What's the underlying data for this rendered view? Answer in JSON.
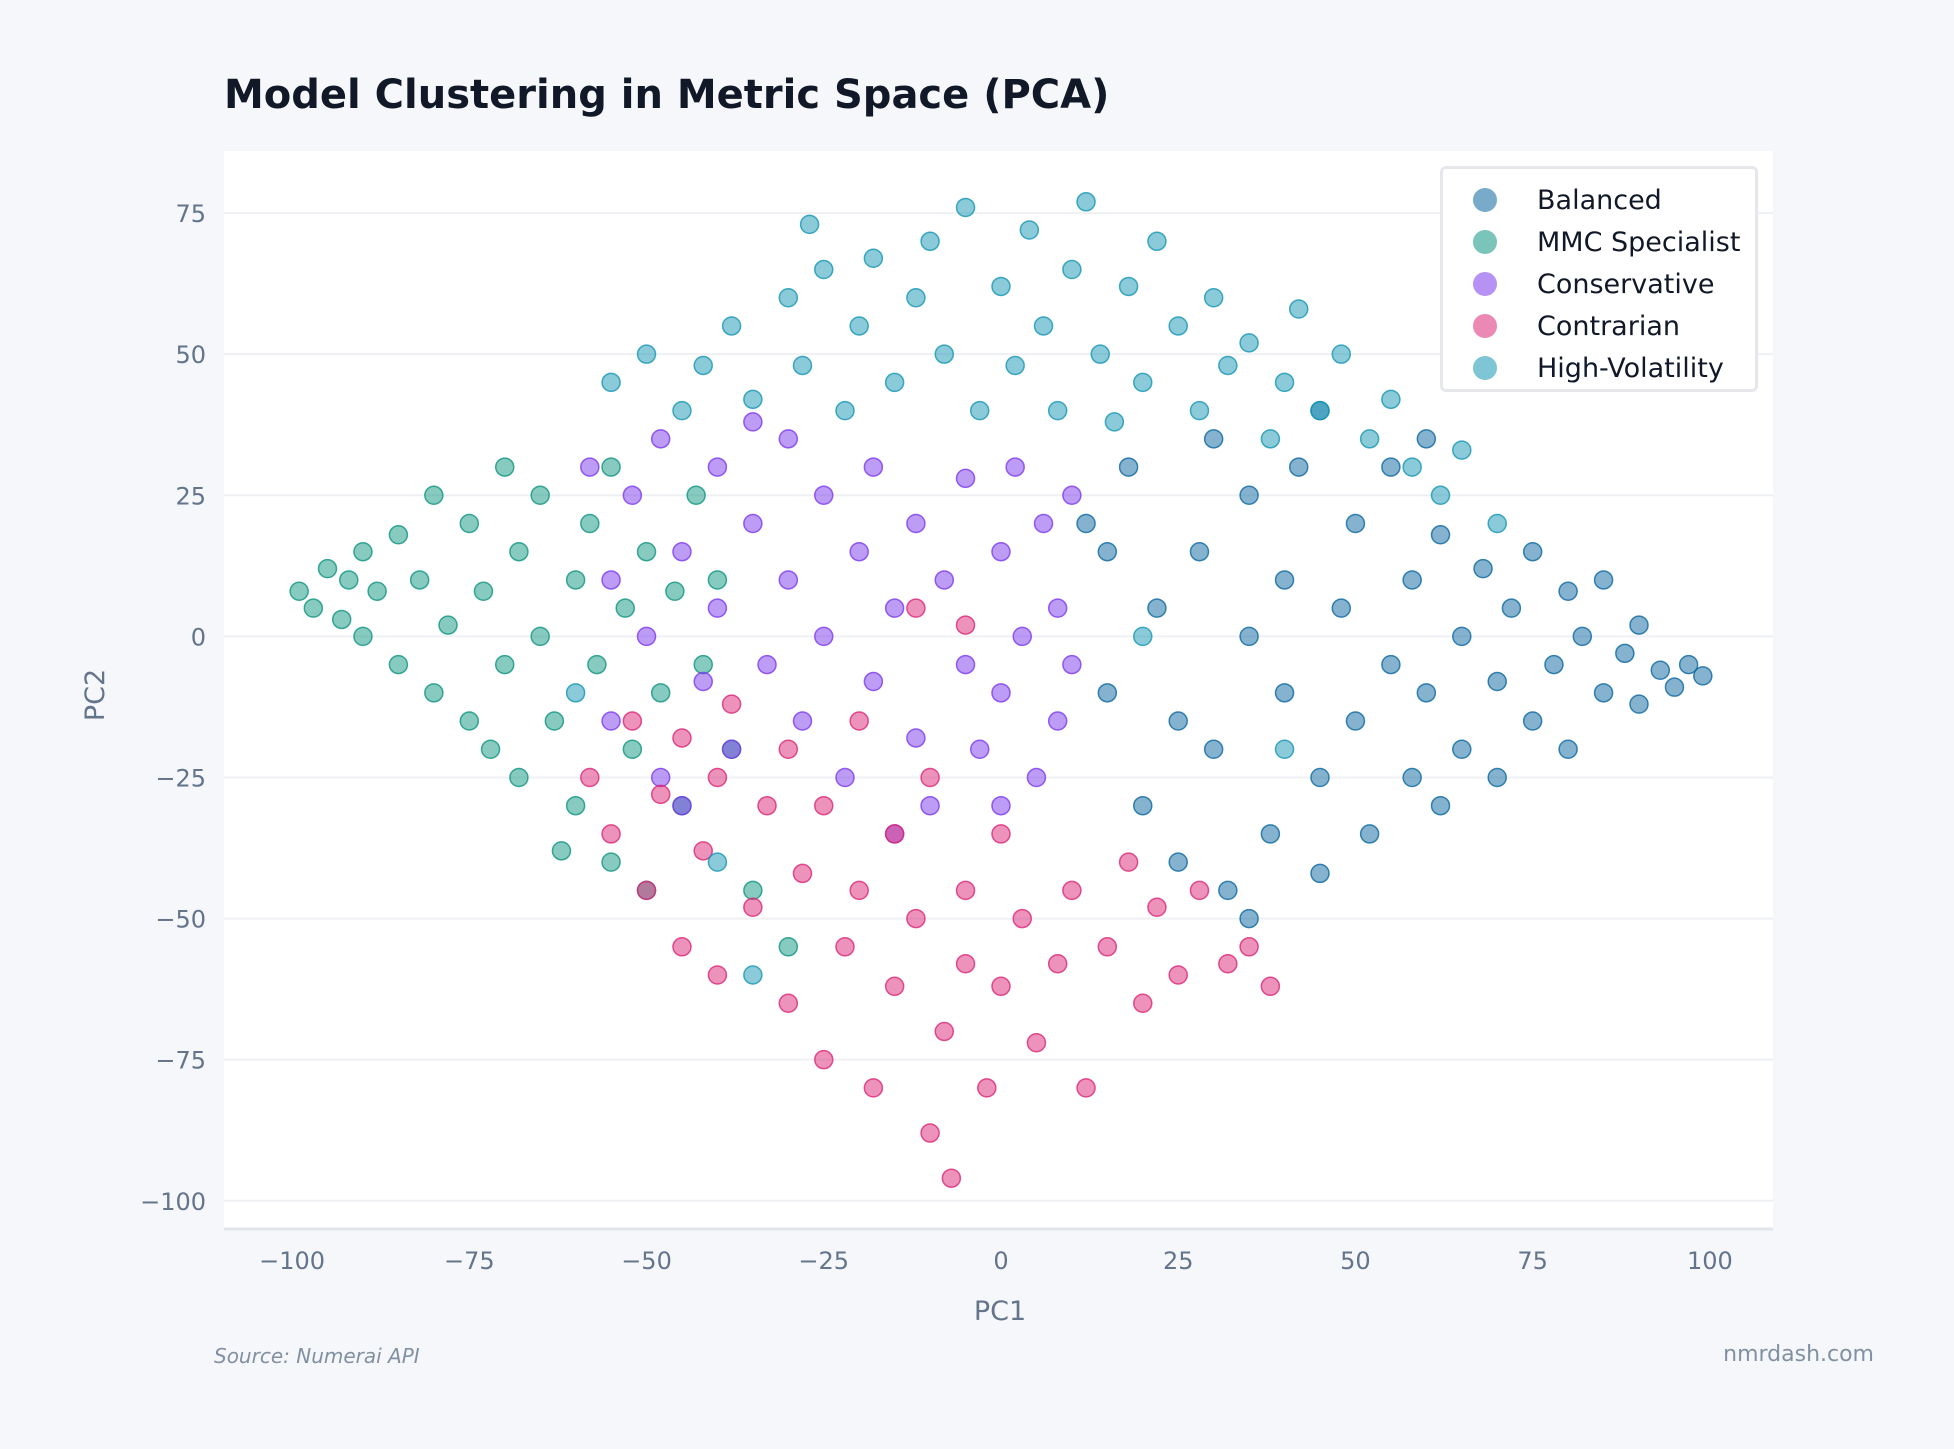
{
  "chart_data": {
    "type": "scatter",
    "title": "Model Clustering in Metric Space (PCA)",
    "xlabel": "PC1",
    "ylabel": "PC2",
    "xlim": [
      -109.6,
      108.9
    ],
    "ylim": [
      -105,
      86
    ],
    "xticks": [
      -100,
      -75,
      -50,
      -25,
      0,
      25,
      50,
      75,
      100
    ],
    "yticks": [
      75,
      50,
      25,
      0,
      -25,
      -50,
      -75,
      -100
    ],
    "grid": true,
    "legend_position": "top-right",
    "series": [
      {
        "name": "Balanced",
        "color": "#0b68a0",
        "points": [
          [
            12,
            20
          ],
          [
            15,
            -10
          ],
          [
            18,
            30
          ],
          [
            20,
            -30
          ],
          [
            22,
            5
          ],
          [
            25,
            -40
          ],
          [
            28,
            15
          ],
          [
            30,
            35
          ],
          [
            30,
            -20
          ],
          [
            32,
            -45
          ],
          [
            35,
            0
          ],
          [
            35,
            25
          ],
          [
            38,
            -35
          ],
          [
            40,
            10
          ],
          [
            40,
            -10
          ],
          [
            42,
            30
          ],
          [
            45,
            -25
          ],
          [
            45,
            -42
          ],
          [
            48,
            5
          ],
          [
            50,
            20
          ],
          [
            50,
            -15
          ],
          [
            52,
            -35
          ],
          [
            55,
            -5
          ],
          [
            55,
            30
          ],
          [
            58,
            10
          ],
          [
            58,
            -25
          ],
          [
            60,
            -10
          ],
          [
            62,
            18
          ],
          [
            62,
            -30
          ],
          [
            65,
            0
          ],
          [
            65,
            -20
          ],
          [
            68,
            12
          ],
          [
            70,
            -8
          ],
          [
            70,
            -25
          ],
          [
            72,
            5
          ],
          [
            75,
            15
          ],
          [
            75,
            -15
          ],
          [
            78,
            -5
          ],
          [
            80,
            8
          ],
          [
            80,
            -20
          ],
          [
            82,
            0
          ],
          [
            85,
            -10
          ],
          [
            85,
            10
          ],
          [
            88,
            -3
          ],
          [
            90,
            -12
          ],
          [
            90,
            2
          ],
          [
            93,
            -6
          ],
          [
            95,
            -9
          ],
          [
            97,
            -5
          ],
          [
            99,
            -7
          ],
          [
            25,
            -15
          ],
          [
            35,
            -50
          ],
          [
            15,
            15
          ],
          [
            60,
            35
          ],
          [
            45,
            40
          ]
        ]
      },
      {
        "name": "MMC Specialist",
        "color": "#0f9580",
        "points": [
          [
            -99,
            8
          ],
          [
            -97,
            5
          ],
          [
            -95,
            12
          ],
          [
            -93,
            3
          ],
          [
            -90,
            15
          ],
          [
            -90,
            0
          ],
          [
            -88,
            8
          ],
          [
            -85,
            18
          ],
          [
            -85,
            -5
          ],
          [
            -82,
            10
          ],
          [
            -80,
            25
          ],
          [
            -80,
            -10
          ],
          [
            -78,
            2
          ],
          [
            -75,
            20
          ],
          [
            -75,
            -15
          ],
          [
            -73,
            8
          ],
          [
            -70,
            30
          ],
          [
            -70,
            -5
          ],
          [
            -68,
            15
          ],
          [
            -68,
            -25
          ],
          [
            -65,
            0
          ],
          [
            -65,
            25
          ],
          [
            -63,
            -15
          ],
          [
            -60,
            10
          ],
          [
            -60,
            -30
          ],
          [
            -58,
            20
          ],
          [
            -57,
            -5
          ],
          [
            -55,
            30
          ],
          [
            -55,
            -40
          ],
          [
            -53,
            5
          ],
          [
            -52,
            -20
          ],
          [
            -50,
            15
          ],
          [
            -50,
            -45
          ],
          [
            -48,
            -10
          ],
          [
            -46,
            8
          ],
          [
            -45,
            -30
          ],
          [
            -43,
            25
          ],
          [
            -42,
            -5
          ],
          [
            -40,
            10
          ],
          [
            -38,
            -20
          ],
          [
            -35,
            -45
          ],
          [
            -30,
            -55
          ],
          [
            -62,
            -38
          ],
          [
            -72,
            -20
          ],
          [
            -92,
            10
          ]
        ]
      },
      {
        "name": "Conservative",
        "color": "#7c3aed",
        "points": [
          [
            -58,
            30
          ],
          [
            -55,
            10
          ],
          [
            -55,
            -15
          ],
          [
            -52,
            25
          ],
          [
            -50,
            0
          ],
          [
            -48,
            35
          ],
          [
            -48,
            -25
          ],
          [
            -45,
            15
          ],
          [
            -42,
            -8
          ],
          [
            -40,
            30
          ],
          [
            -40,
            5
          ],
          [
            -38,
            -20
          ],
          [
            -35,
            20
          ],
          [
            -33,
            -5
          ],
          [
            -30,
            35
          ],
          [
            -30,
            10
          ],
          [
            -28,
            -15
          ],
          [
            -25,
            25
          ],
          [
            -25,
            0
          ],
          [
            -22,
            -25
          ],
          [
            -20,
            15
          ],
          [
            -18,
            30
          ],
          [
            -18,
            -8
          ],
          [
            -15,
            5
          ],
          [
            -12,
            20
          ],
          [
            -12,
            -18
          ],
          [
            -10,
            -30
          ],
          [
            -8,
            10
          ],
          [
            -5,
            28
          ],
          [
            -5,
            -5
          ],
          [
            -3,
            -20
          ],
          [
            0,
            15
          ],
          [
            0,
            -10
          ],
          [
            2,
            30
          ],
          [
            3,
            0
          ],
          [
            5,
            -25
          ],
          [
            6,
            20
          ],
          [
            8,
            5
          ],
          [
            8,
            -15
          ],
          [
            10,
            25
          ],
          [
            10,
            -5
          ],
          [
            -45,
            -30
          ],
          [
            -35,
            38
          ],
          [
            -15,
            -35
          ],
          [
            0,
            -30
          ]
        ]
      },
      {
        "name": "Contrarian",
        "color": "#db2777",
        "points": [
          [
            -58,
            -25
          ],
          [
            -55,
            -35
          ],
          [
            -52,
            -15
          ],
          [
            -50,
            -45
          ],
          [
            -48,
            -28
          ],
          [
            -45,
            -55
          ],
          [
            -45,
            -18
          ],
          [
            -42,
            -38
          ],
          [
            -40,
            -60
          ],
          [
            -40,
            -25
          ],
          [
            -38,
            -12
          ],
          [
            -35,
            -48
          ],
          [
            -33,
            -30
          ],
          [
            -30,
            -65
          ],
          [
            -30,
            -20
          ],
          [
            -28,
            -42
          ],
          [
            -25,
            -75
          ],
          [
            -25,
            -30
          ],
          [
            -22,
            -55
          ],
          [
            -20,
            -15
          ],
          [
            -20,
            -45
          ],
          [
            -18,
            -80
          ],
          [
            -15,
            -35
          ],
          [
            -15,
            -62
          ],
          [
            -12,
            -50
          ],
          [
            -10,
            -88
          ],
          [
            -10,
            -25
          ],
          [
            -8,
            -70
          ],
          [
            -7,
            -96
          ],
          [
            -5,
            -45
          ],
          [
            -5,
            -58
          ],
          [
            -2,
            -80
          ],
          [
            0,
            -62
          ],
          [
            0,
            -35
          ],
          [
            3,
            -50
          ],
          [
            5,
            -72
          ],
          [
            8,
            -58
          ],
          [
            10,
            -45
          ],
          [
            12,
            -80
          ],
          [
            15,
            -55
          ],
          [
            18,
            -40
          ],
          [
            20,
            -65
          ],
          [
            22,
            -48
          ],
          [
            25,
            -60
          ],
          [
            28,
            -45
          ],
          [
            32,
            -58
          ],
          [
            35,
            -55
          ],
          [
            38,
            -62
          ],
          [
            -12,
            5
          ],
          [
            -5,
            2
          ]
        ]
      },
      {
        "name": "High-Volatility",
        "color": "#1596b3",
        "points": [
          [
            -55,
            45
          ],
          [
            -50,
            50
          ],
          [
            -45,
            40
          ],
          [
            -42,
            48
          ],
          [
            -38,
            55
          ],
          [
            -35,
            42
          ],
          [
            -30,
            60
          ],
          [
            -28,
            48
          ],
          [
            -25,
            65
          ],
          [
            -22,
            40
          ],
          [
            -20,
            55
          ],
          [
            -18,
            67
          ],
          [
            -15,
            45
          ],
          [
            -12,
            60
          ],
          [
            -10,
            70
          ],
          [
            -8,
            50
          ],
          [
            -5,
            76
          ],
          [
            -3,
            40
          ],
          [
            0,
            62
          ],
          [
            2,
            48
          ],
          [
            4,
            72
          ],
          [
            6,
            55
          ],
          [
            8,
            40
          ],
          [
            10,
            65
          ],
          [
            12,
            77
          ],
          [
            14,
            50
          ],
          [
            16,
            38
          ],
          [
            18,
            62
          ],
          [
            20,
            45
          ],
          [
            22,
            70
          ],
          [
            25,
            55
          ],
          [
            28,
            40
          ],
          [
            30,
            60
          ],
          [
            32,
            48
          ],
          [
            35,
            52
          ],
          [
            38,
            35
          ],
          [
            40,
            45
          ],
          [
            42,
            58
          ],
          [
            45,
            40
          ],
          [
            48,
            50
          ],
          [
            52,
            35
          ],
          [
            55,
            42
          ],
          [
            58,
            30
          ],
          [
            62,
            25
          ],
          [
            65,
            33
          ],
          [
            70,
            20
          ],
          [
            -27,
            73
          ],
          [
            20,
            0
          ],
          [
            40,
            -20
          ],
          [
            -60,
            -10
          ],
          [
            -40,
            -40
          ],
          [
            -35,
            -60
          ]
        ]
      }
    ]
  },
  "footer": {
    "source": "Source: Numerai API",
    "brand": "nmrdash.com"
  }
}
